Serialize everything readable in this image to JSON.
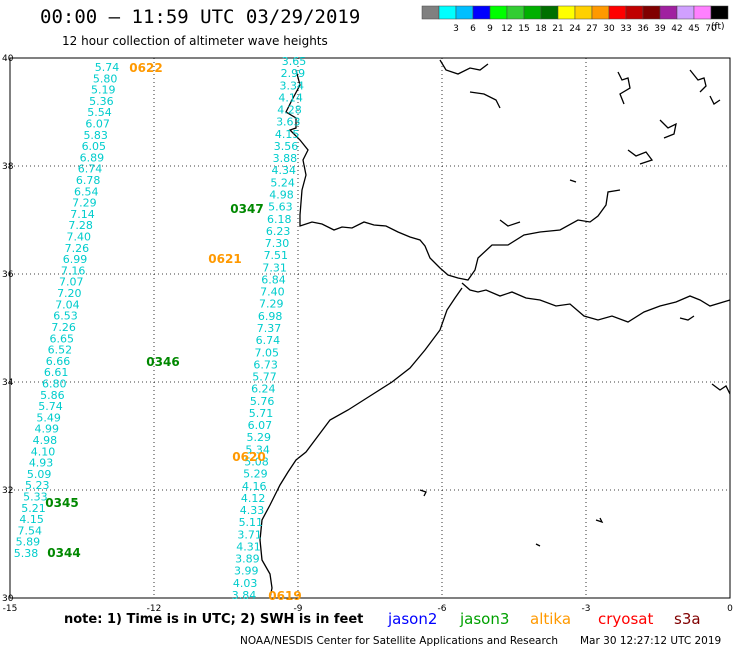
{
  "title": "00:00 – 11:59 UTC 03/29/2019",
  "subtitle": "12 hour collection of altimeter wave heights",
  "legend": {
    "unit": "(ft)",
    "bins": [
      {
        "color": "#808080",
        "label": ""
      },
      {
        "color": "#00ffff",
        "label": "3"
      },
      {
        "color": "#00bfff",
        "label": "6"
      },
      {
        "color": "#0000ff",
        "label": "9"
      },
      {
        "color": "#00ff00",
        "label": "12"
      },
      {
        "color": "#32cd32",
        "label": "15"
      },
      {
        "color": "#00b000",
        "label": "18"
      },
      {
        "color": "#007000",
        "label": "21"
      },
      {
        "color": "#ffff00",
        "label": "24"
      },
      {
        "color": "#ffd000",
        "label": "27"
      },
      {
        "color": "#ff9900",
        "label": "30"
      },
      {
        "color": "#ff0000",
        "label": "33"
      },
      {
        "color": "#c00000",
        "label": "36"
      },
      {
        "color": "#800000",
        "label": "39"
      },
      {
        "color": "#a020a0",
        "label": "42"
      },
      {
        "color": "#d0a0ff",
        "label": "45"
      },
      {
        "color": "#ff80ff",
        "label": "70"
      },
      {
        "color": "#000000",
        "label": ""
      }
    ]
  },
  "axes": {
    "lon_ticks": [
      "-15",
      "-12",
      "-9",
      "-6",
      "-3",
      "0"
    ],
    "lat_ticks": [
      "40",
      "38",
      "36",
      "34",
      "32",
      "30"
    ]
  },
  "colors": {
    "track_text": "#00cccc",
    "pass_altika": "#ff9900",
    "pass_jason3": "#008800"
  },
  "pass_labels": [
    {
      "text": "0622",
      "sat": "altika"
    },
    {
      "text": "0347",
      "sat": "jason3"
    },
    {
      "text": "0621",
      "sat": "altika"
    },
    {
      "text": "0346",
      "sat": "jason3"
    },
    {
      "text": "0620",
      "sat": "altika"
    },
    {
      "text": "0345",
      "sat": "jason3"
    },
    {
      "text": "0344",
      "sat": "jason3"
    },
    {
      "text": "0619",
      "sat": "altika"
    }
  ],
  "tracks": {
    "west_track": [
      "5.74",
      "5.80",
      "5.19",
      "5.36",
      "5.54",
      "6.07",
      "5.83",
      "6.05",
      "6.89",
      "6.74",
      "6.78",
      "6.54",
      "7.29",
      "7.14",
      "7.28",
      "7.40",
      "7.26",
      "6.99",
      "7.16",
      "7.07",
      "7.20",
      "7.04",
      "6.53",
      "7.26",
      "6.65",
      "6.52",
      "6.66",
      "6.61",
      "6.80",
      "5.86",
      "5.74",
      "5.49",
      "4.99",
      "4.98",
      "4.10",
      "4.93",
      "5.09",
      "5.23",
      "5.33",
      "5.21",
      "4.15",
      "7.54",
      "5.89",
      "5.38"
    ],
    "east_track": [
      "3.65",
      "2.99",
      "3.34",
      "4.14",
      "4.28",
      "3.63",
      "4.15",
      "3.56",
      "3.88",
      "4.34",
      "5.24",
      "4.98",
      "5.63",
      "6.18",
      "6.23",
      "7.30",
      "7.51",
      "7.31",
      "6.84",
      "7.40",
      "7.29",
      "6.98",
      "7.37",
      "6.74",
      "7.05",
      "6.73",
      "5.77",
      "6.24",
      "5.76",
      "5.71",
      "6.07",
      "5.29",
      "5.34",
      "5.08",
      "5.29",
      "4.16",
      "4.12",
      "4.33",
      "5.11",
      "3.71",
      "4.31",
      "3.89",
      "3.99",
      "4.03",
      "3.84"
    ]
  },
  "bottom": {
    "note": "note: 1) Time is in UTC; 2) SWH is in feet",
    "satellites": [
      {
        "name": "jason2",
        "color": "#0000ff"
      },
      {
        "name": "jason3",
        "color": "#00a000"
      },
      {
        "name": "altika",
        "color": "#ff9900"
      },
      {
        "name": "cryosat",
        "color": "#ff0000"
      },
      {
        "name": "s3a",
        "color": "#800000"
      }
    ],
    "credit": "NOAA/NESDIS Center for Satellite Applications and Research",
    "timestamp": "Mar 30 12:27:12 UTC 2019"
  }
}
